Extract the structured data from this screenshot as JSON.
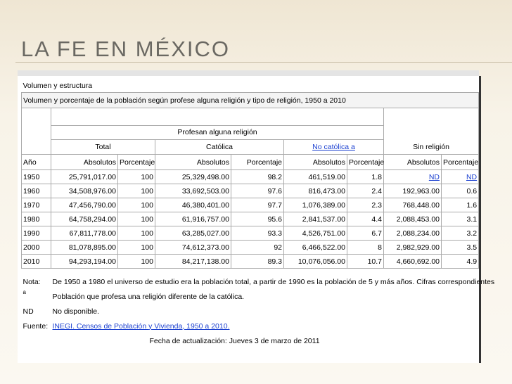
{
  "header": {
    "title": "LA FE EN MÉXICO"
  },
  "table": {
    "section": "Volumen y estructura",
    "caption": "Volumen y porcentaje de la población según profese alguna religión y tipo de religión, 1950 a 2010",
    "group": "Profesan alguna religión",
    "subheaders": [
      "Total",
      "Católica",
      "No católica a",
      "Sin religión"
    ],
    "columns": [
      "Año",
      "Absolutos",
      "Porcentaje",
      "Absolutos",
      "Porcentaje",
      "Absolutos",
      "Porcentaje",
      "Absolutos",
      "Porcentaje"
    ],
    "rows": [
      [
        "1950",
        "25,791,017.00",
        "100",
        "25,329,498.00",
        "98.2",
        "461,519.00",
        "1.8",
        "ND",
        "ND"
      ],
      [
        "1960",
        "34,508,976.00",
        "100",
        "33,692,503.00",
        "97.6",
        "816,473.00",
        "2.4",
        "192,963.00",
        "0.6"
      ],
      [
        "1970",
        "47,456,790.00",
        "100",
        "46,380,401.00",
        "97.7",
        "1,076,389.00",
        "2.3",
        "768,448.00",
        "1.6"
      ],
      [
        "1980",
        "64,758,294.00",
        "100",
        "61,916,757.00",
        "95.6",
        "2,841,537.00",
        "4.4",
        "2,088,453.00",
        "3.1"
      ],
      [
        "1990",
        "67,811,778.00",
        "100",
        "63,285,027.00",
        "93.3",
        "4,526,751.00",
        "6.7",
        "2,088,234.00",
        "3.2"
      ],
      [
        "2000",
        "81,078,895.00",
        "100",
        "74,612,373.00",
        "92",
        "6,466,522.00",
        "8",
        "2,982,929.00",
        "3.5"
      ],
      [
        "2010",
        "94,293,194.00",
        "100",
        "84,217,138.00",
        "89.3",
        "10,076,056.00",
        "10.7",
        "4,660,692.00",
        "4.9"
      ]
    ]
  },
  "notes": [
    {
      "label": "Nota:",
      "text": "De 1950 a 1980 el universo de estudio era la población total, a partir de 1990 es la población de 5 y más años. Cifras correspondientes"
    },
    {
      "label": "a",
      "text": "Población que profesa una religión diferente de la católica."
    },
    {
      "label": "ND",
      "text": "No disponible."
    },
    {
      "label": "Fuente:",
      "text": "INEGI. Censos de Población y Vivienda, 1950 a 2010."
    }
  ],
  "updated": "Fecha de actualización: Jueves 3 de marzo de 2011"
}
